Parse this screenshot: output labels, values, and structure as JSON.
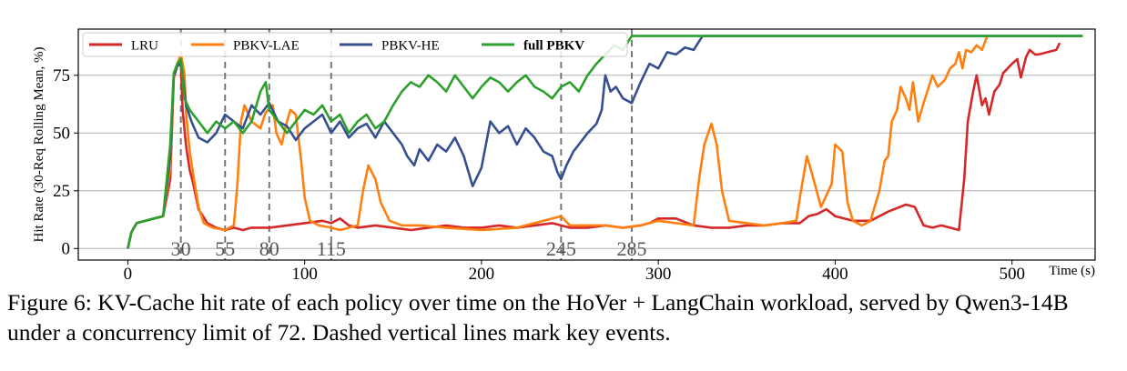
{
  "chart_data": {
    "type": "line",
    "xlabel": "Time (s)",
    "ylabel": "Hit Rate (30-Req Rolling Mean, %)",
    "xlim": [
      -28,
      547
    ],
    "ylim": [
      -5,
      95
    ],
    "xticks": [
      0,
      100,
      200,
      300,
      400,
      500
    ],
    "yticks": [
      0,
      25,
      50,
      75
    ],
    "grid": "horizontal",
    "legend_position": "top-left",
    "events": [
      30,
      55,
      80,
      115,
      245,
      285
    ],
    "series": [
      {
        "name": "LRU",
        "color": "#d62728",
        "points": [
          [
            0,
            0
          ],
          [
            2,
            7
          ],
          [
            5,
            11
          ],
          [
            10,
            12
          ],
          [
            15,
            13
          ],
          [
            20,
            14
          ],
          [
            24,
            30
          ],
          [
            26,
            74
          ],
          [
            28,
            79
          ],
          [
            30,
            80
          ],
          [
            31,
            60
          ],
          [
            33,
            44
          ],
          [
            35,
            34
          ],
          [
            37,
            28
          ],
          [
            40,
            17
          ],
          [
            45,
            11
          ],
          [
            50,
            9
          ],
          [
            55,
            8
          ],
          [
            60,
            9
          ],
          [
            65,
            8
          ],
          [
            70,
            9
          ],
          [
            80,
            9
          ],
          [
            90,
            10
          ],
          [
            100,
            11
          ],
          [
            110,
            12
          ],
          [
            115,
            11
          ],
          [
            120,
            13
          ],
          [
            125,
            10
          ],
          [
            130,
            9
          ],
          [
            140,
            10
          ],
          [
            150,
            9
          ],
          [
            160,
            8
          ],
          [
            170,
            9
          ],
          [
            180,
            10
          ],
          [
            190,
            9
          ],
          [
            200,
            9
          ],
          [
            210,
            10
          ],
          [
            220,
            9
          ],
          [
            230,
            10
          ],
          [
            240,
            11
          ],
          [
            245,
            10
          ],
          [
            250,
            9
          ],
          [
            260,
            9
          ],
          [
            270,
            10
          ],
          [
            280,
            9
          ],
          [
            290,
            10
          ],
          [
            295,
            11
          ],
          [
            300,
            13
          ],
          [
            310,
            13
          ],
          [
            320,
            10
          ],
          [
            330,
            9
          ],
          [
            340,
            9
          ],
          [
            350,
            10
          ],
          [
            360,
            10
          ],
          [
            370,
            11
          ],
          [
            380,
            11
          ],
          [
            385,
            14
          ],
          [
            390,
            15
          ],
          [
            395,
            17
          ],
          [
            400,
            14
          ],
          [
            410,
            12
          ],
          [
            420,
            12
          ],
          [
            430,
            16
          ],
          [
            440,
            19
          ],
          [
            445,
            18
          ],
          [
            450,
            10
          ],
          [
            455,
            9
          ],
          [
            460,
            10
          ],
          [
            465,
            9
          ],
          [
            470,
            8
          ],
          [
            473,
            30
          ],
          [
            475,
            55
          ],
          [
            478,
            68
          ],
          [
            480,
            75
          ],
          [
            483,
            62
          ],
          [
            485,
            65
          ],
          [
            487,
            58
          ],
          [
            490,
            68
          ],
          [
            493,
            71
          ],
          [
            495,
            76
          ],
          [
            500,
            80
          ],
          [
            503,
            82
          ],
          [
            505,
            74
          ],
          [
            508,
            83
          ],
          [
            510,
            86
          ],
          [
            513,
            84
          ],
          [
            515,
            84
          ],
          [
            520,
            85
          ],
          [
            525,
            86
          ],
          [
            527,
            89
          ]
        ]
      },
      {
        "name": "PBKV-LAE",
        "color": "#ff7f0e",
        "points": [
          [
            0,
            0
          ],
          [
            2,
            7
          ],
          [
            5,
            11
          ],
          [
            10,
            12
          ],
          [
            15,
            13
          ],
          [
            20,
            14
          ],
          [
            24,
            35
          ],
          [
            26,
            75
          ],
          [
            28,
            80
          ],
          [
            30,
            84
          ],
          [
            32,
            76
          ],
          [
            33,
            58
          ],
          [
            35,
            42
          ],
          [
            37,
            32
          ],
          [
            40,
            18
          ],
          [
            43,
            11
          ],
          [
            48,
            9
          ],
          [
            55,
            8
          ],
          [
            60,
            10
          ],
          [
            62,
            28
          ],
          [
            64,
            55
          ],
          [
            66,
            62
          ],
          [
            70,
            55
          ],
          [
            75,
            52
          ],
          [
            78,
            59
          ],
          [
            82,
            62
          ],
          [
            84,
            50
          ],
          [
            87,
            45
          ],
          [
            90,
            55
          ],
          [
            92,
            60
          ],
          [
            95,
            58
          ],
          [
            98,
            38
          ],
          [
            100,
            22
          ],
          [
            103,
            12
          ],
          [
            108,
            10
          ],
          [
            115,
            9
          ],
          [
            120,
            8
          ],
          [
            125,
            9
          ],
          [
            130,
            10
          ],
          [
            133,
            25
          ],
          [
            136,
            36
          ],
          [
            140,
            30
          ],
          [
            143,
            20
          ],
          [
            148,
            12
          ],
          [
            155,
            10
          ],
          [
            165,
            10
          ],
          [
            180,
            9
          ],
          [
            200,
            8
          ],
          [
            220,
            9
          ],
          [
            245,
            14
          ],
          [
            250,
            10
          ],
          [
            260,
            10
          ],
          [
            270,
            10
          ],
          [
            280,
            9
          ],
          [
            290,
            10
          ],
          [
            300,
            12
          ],
          [
            310,
            11
          ],
          [
            320,
            10
          ],
          [
            323,
            30
          ],
          [
            326,
            45
          ],
          [
            330,
            54
          ],
          [
            333,
            45
          ],
          [
            336,
            25
          ],
          [
            340,
            12
          ],
          [
            350,
            11
          ],
          [
            360,
            10
          ],
          [
            370,
            11
          ],
          [
            378,
            12
          ],
          [
            380,
            22
          ],
          [
            384,
            40
          ],
          [
            387,
            32
          ],
          [
            392,
            18
          ],
          [
            398,
            28
          ],
          [
            400,
            45
          ],
          [
            404,
            42
          ],
          [
            407,
            20
          ],
          [
            410,
            12
          ],
          [
            415,
            10
          ],
          [
            420,
            12
          ],
          [
            425,
            25
          ],
          [
            428,
            38
          ],
          [
            430,
            40
          ],
          [
            432,
            55
          ],
          [
            435,
            60
          ],
          [
            437,
            70
          ],
          [
            440,
            65
          ],
          [
            442,
            60
          ],
          [
            444,
            72
          ],
          [
            447,
            55
          ],
          [
            450,
            63
          ],
          [
            455,
            75
          ],
          [
            458,
            70
          ],
          [
            462,
            73
          ],
          [
            465,
            78
          ],
          [
            468,
            80
          ],
          [
            470,
            85
          ],
          [
            472,
            78
          ],
          [
            474,
            86
          ],
          [
            477,
            85
          ],
          [
            480,
            88
          ],
          [
            483,
            86
          ],
          [
            486,
            92
          ]
        ]
      },
      {
        "name": "PBKV-HE",
        "color": "#354f8f",
        "points": [
          [
            0,
            0
          ],
          [
            2,
            7
          ],
          [
            5,
            11
          ],
          [
            10,
            12
          ],
          [
            15,
            13
          ],
          [
            20,
            14
          ],
          [
            24,
            40
          ],
          [
            26,
            75
          ],
          [
            28,
            79
          ],
          [
            30,
            81
          ],
          [
            33,
            62
          ],
          [
            36,
            55
          ],
          [
            40,
            48
          ],
          [
            45,
            46
          ],
          [
            50,
            50
          ],
          [
            55,
            58
          ],
          [
            60,
            55
          ],
          [
            65,
            52
          ],
          [
            70,
            62
          ],
          [
            75,
            58
          ],
          [
            80,
            63
          ],
          [
            85,
            55
          ],
          [
            90,
            53
          ],
          [
            95,
            47
          ],
          [
            100,
            52
          ],
          [
            105,
            55
          ],
          [
            110,
            58
          ],
          [
            115,
            50
          ],
          [
            120,
            55
          ],
          [
            125,
            48
          ],
          [
            130,
            52
          ],
          [
            135,
            54
          ],
          [
            140,
            48
          ],
          [
            145,
            55
          ],
          [
            150,
            50
          ],
          [
            155,
            45
          ],
          [
            158,
            40
          ],
          [
            162,
            36
          ],
          [
            165,
            43
          ],
          [
            170,
            38
          ],
          [
            175,
            45
          ],
          [
            180,
            42
          ],
          [
            185,
            48
          ],
          [
            190,
            40
          ],
          [
            195,
            27
          ],
          [
            200,
            35
          ],
          [
            205,
            55
          ],
          [
            210,
            50
          ],
          [
            215,
            53
          ],
          [
            220,
            45
          ],
          [
            225,
            52
          ],
          [
            230,
            48
          ],
          [
            235,
            42
          ],
          [
            240,
            40
          ],
          [
            243,
            33
          ],
          [
            245,
            30
          ],
          [
            248,
            36
          ],
          [
            252,
            42
          ],
          [
            255,
            45
          ],
          [
            260,
            50
          ],
          [
            265,
            54
          ],
          [
            268,
            60
          ],
          [
            270,
            75
          ],
          [
            273,
            68
          ],
          [
            276,
            70
          ],
          [
            280,
            65
          ],
          [
            285,
            63
          ],
          [
            290,
            72
          ],
          [
            295,
            80
          ],
          [
            300,
            78
          ],
          [
            305,
            85
          ],
          [
            310,
            84
          ],
          [
            315,
            87
          ],
          [
            320,
            86
          ],
          [
            325,
            92
          ],
          [
            540,
            92
          ]
        ]
      },
      {
        "name": "full PBKV",
        "color": "#2ca02c",
        "points": [
          [
            0,
            0
          ],
          [
            2,
            7
          ],
          [
            5,
            11
          ],
          [
            10,
            12
          ],
          [
            15,
            13
          ],
          [
            20,
            14
          ],
          [
            24,
            45
          ],
          [
            26,
            76
          ],
          [
            28,
            80
          ],
          [
            30,
            82
          ],
          [
            32,
            65
          ],
          [
            35,
            60
          ],
          [
            40,
            55
          ],
          [
            45,
            50
          ],
          [
            50,
            55
          ],
          [
            55,
            52
          ],
          [
            60,
            55
          ],
          [
            65,
            50
          ],
          [
            70,
            55
          ],
          [
            75,
            68
          ],
          [
            78,
            72
          ],
          [
            80,
            60
          ],
          [
            85,
            55
          ],
          [
            90,
            50
          ],
          [
            95,
            55
          ],
          [
            100,
            60
          ],
          [
            105,
            58
          ],
          [
            110,
            62
          ],
          [
            115,
            55
          ],
          [
            120,
            58
          ],
          [
            125,
            50
          ],
          [
            130,
            55
          ],
          [
            135,
            58
          ],
          [
            140,
            52
          ],
          [
            145,
            55
          ],
          [
            150,
            62
          ],
          [
            155,
            68
          ],
          [
            160,
            72
          ],
          [
            165,
            70
          ],
          [
            170,
            75
          ],
          [
            175,
            72
          ],
          [
            180,
            68
          ],
          [
            185,
            75
          ],
          [
            190,
            70
          ],
          [
            195,
            65
          ],
          [
            200,
            70
          ],
          [
            205,
            74
          ],
          [
            210,
            72
          ],
          [
            215,
            68
          ],
          [
            220,
            72
          ],
          [
            225,
            75
          ],
          [
            230,
            70
          ],
          [
            235,
            68
          ],
          [
            240,
            65
          ],
          [
            245,
            70
          ],
          [
            250,
            72
          ],
          [
            255,
            68
          ],
          [
            260,
            75
          ],
          [
            265,
            80
          ],
          [
            270,
            84
          ],
          [
            275,
            88
          ],
          [
            280,
            86
          ],
          [
            285,
            92
          ],
          [
            540,
            92
          ]
        ]
      }
    ]
  },
  "caption": "Figure 6: KV-Cache hit rate of each policy over time on the HoVer + LangChain workload, served by Qwen3-14B under a concurrency limit of 72. Dashed vertical lines mark key events."
}
